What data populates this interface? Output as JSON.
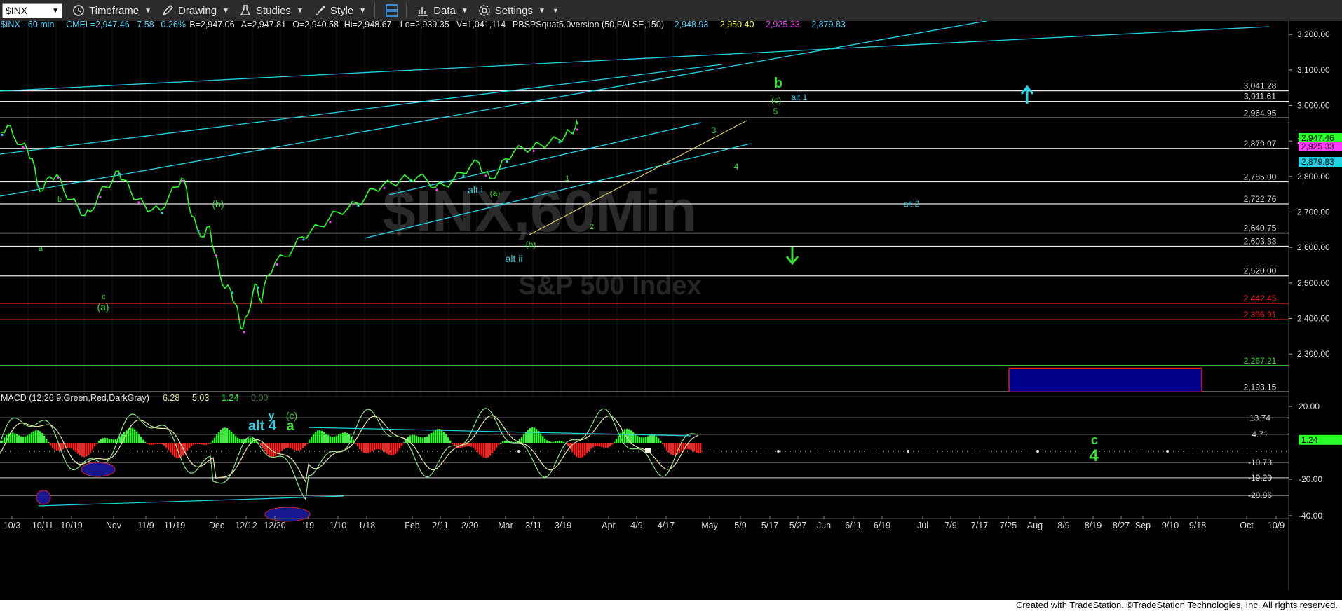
{
  "toolbar": {
    "symbol": "$INX",
    "timeframe_label": "Timeframe",
    "drawing_label": "Drawing",
    "studies_label": "Studies",
    "style_label": "Style",
    "data_label": "Data",
    "settings_label": "Settings"
  },
  "header": {
    "symbol_interval": "$INX - 60 min",
    "exchange": "CME",
    "last": "L=2,947.46",
    "change": "7.58",
    "change_pct": "0.26%",
    "bid": "B=2,947.06",
    "ask": "A=2,947.81",
    "open": "O=2,940.58",
    "high": "Hi=2,948.67",
    "low": "Lo=2,939.35",
    "volume": "V=1,041,114",
    "study": "PBSPSquat5.0version (50,FALSE,150)",
    "study_values": [
      "2,948.93",
      "2,950.40",
      "2,925.33",
      "2,879.83"
    ],
    "study_colors": [
      "#4fd8ff",
      "#ffff40",
      "#ff3cff",
      "#4fd8ff"
    ]
  },
  "watermark": {
    "line1": "$INX,60Min",
    "line2": "S&P 500 Index"
  },
  "colors": {
    "bg": "#000000",
    "price_up": "#29ff29",
    "cyan": "#22d3e6",
    "white": "#ffffff",
    "red": "#ff2020",
    "label_green": "#33e033",
    "label_cyan": "#33ccdd",
    "navy_box": "#00008b",
    "macd_line": "#8fe48f",
    "signal_line": "#e6e6a0"
  },
  "chart_data": {
    "type": "line",
    "title": "$INX - 60 min",
    "x_ticks": [
      "10/3",
      "10/11",
      "10/19",
      "Nov",
      "11/9",
      "11/19",
      "Dec",
      "12/12",
      "12/20",
      "'19",
      "1/10",
      "1/18",
      "Feb",
      "2/11",
      "2/20",
      "Mar",
      "3/11",
      "3/19",
      "Apr",
      "4/9",
      "4/17",
      "May",
      "5/9",
      "5/17",
      "5/27",
      "Jun",
      "6/11",
      "6/19",
      "Jul",
      "7/9",
      "7/17",
      "7/25",
      "Aug",
      "8/9",
      "8/19",
      "8/27",
      "Sep",
      "9/10",
      "9/18",
      "Oct",
      "10/9"
    ],
    "y_ticks": [
      "3,200.00",
      "3,100.00",
      "3,000.00",
      "2,900.00",
      "2,800.00",
      "2,700.00",
      "2,600.00",
      "2,500.00",
      "2,400.00",
      "2,300.00"
    ],
    "ylim": [
      2180,
      3230
    ],
    "price_path": [
      [
        0,
        2925
      ],
      [
        10,
        2945
      ],
      [
        18,
        2915
      ],
      [
        30,
        2890
      ],
      [
        38,
        2875
      ],
      [
        45,
        2850
      ],
      [
        52,
        2780
      ],
      [
        60,
        2760
      ],
      [
        70,
        2800
      ],
      [
        80,
        2805
      ],
      [
        90,
        2760
      ],
      [
        100,
        2735
      ],
      [
        110,
        2715
      ],
      [
        120,
        2690
      ],
      [
        128,
        2700
      ],
      [
        140,
        2750
      ],
      [
        150,
        2770
      ],
      [
        160,
        2790
      ],
      [
        168,
        2815
      ],
      [
        176,
        2790
      ],
      [
        185,
        2760
      ],
      [
        195,
        2735
      ],
      [
        205,
        2720
      ],
      [
        215,
        2705
      ],
      [
        228,
        2705
      ],
      [
        240,
        2745
      ],
      [
        250,
        2770
      ],
      [
        258,
        2795
      ],
      [
        265,
        2765
      ],
      [
        272,
        2690
      ],
      [
        280,
        2655
      ],
      [
        290,
        2630
      ],
      [
        298,
        2660
      ],
      [
        305,
        2585
      ],
      [
        312,
        2530
      ],
      [
        320,
        2485
      ],
      [
        328,
        2480
      ],
      [
        335,
        2440
      ],
      [
        340,
        2400
      ],
      [
        345,
        2370
      ],
      [
        352,
        2410
      ],
      [
        360,
        2475
      ],
      [
        365,
        2495
      ],
      [
        372,
        2445
      ],
      [
        380,
        2520
      ],
      [
        392,
        2560
      ],
      [
        405,
        2575
      ],
      [
        418,
        2600
      ],
      [
        430,
        2630
      ],
      [
        442,
        2645
      ],
      [
        455,
        2660
      ],
      [
        468,
        2680
      ],
      [
        480,
        2700
      ],
      [
        495,
        2710
      ],
      [
        508,
        2725
      ],
      [
        520,
        2740
      ],
      [
        532,
        2765
      ],
      [
        545,
        2775
      ],
      [
        558,
        2780
      ],
      [
        570,
        2790
      ],
      [
        582,
        2795
      ],
      [
        595,
        2800
      ],
      [
        608,
        2790
      ],
      [
        620,
        2770
      ],
      [
        632,
        2775
      ],
      [
        645,
        2790
      ],
      [
        658,
        2810
      ],
      [
        670,
        2830
      ],
      [
        682,
        2840
      ],
      [
        690,
        2810
      ],
      [
        698,
        2795
      ],
      [
        710,
        2815
      ],
      [
        720,
        2850
      ],
      [
        732,
        2870
      ],
      [
        745,
        2880
      ],
      [
        758,
        2880
      ],
      [
        770,
        2890
      ],
      [
        782,
        2895
      ],
      [
        795,
        2905
      ],
      [
        805,
        2915
      ],
      [
        812,
        2925
      ],
      [
        820,
        2940
      ],
      [
        823,
        2947
      ]
    ],
    "horizontal_levels": [
      {
        "value": "3,041.28",
        "color": "#e8e8e8"
      },
      {
        "value": "3,011.61",
        "color": "#e8e8e8"
      },
      {
        "value": "2,964.95",
        "color": "#e8e8e8"
      },
      {
        "value": "2,879.07",
        "color": "#e8e8e8"
      },
      {
        "value": "2,785.00",
        "color": "#e8e8e8"
      },
      {
        "value": "2,722.76",
        "color": "#e8e8e8"
      },
      {
        "value": "2,640.75",
        "color": "#e8e8e8"
      },
      {
        "value": "2,603.33",
        "color": "#e8e8e8"
      },
      {
        "value": "2,520.00",
        "color": "#e8e8e8"
      },
      {
        "value": "2,442.45",
        "color": "#ff2020"
      },
      {
        "value": "2,396.91",
        "color": "#ff2020"
      },
      {
        "value": "2,267.21",
        "color": "#3cdc3c"
      },
      {
        "value": "2,193.15",
        "color": "#e8e8e8"
      }
    ],
    "price_badges": [
      {
        "value": "2,947.46",
        "color": "#29ff29",
        "text_color": "#000000"
      },
      {
        "value": "2,925.33",
        "color": "#ff3cff",
        "text_color": "#000000"
      },
      {
        "value": "2,879.83",
        "color": "#22d3e6",
        "text_color": "#000000"
      }
    ],
    "wave_labels": [
      {
        "text": "b",
        "color": "#33e033"
      },
      {
        "text": "(c)",
        "color": "#33e033"
      },
      {
        "text": "5",
        "color": "#33e033"
      },
      {
        "text": "alt 1",
        "color": "#33ccdd"
      },
      {
        "text": "3",
        "color": "#33e033"
      },
      {
        "text": "4",
        "color": "#33e033"
      },
      {
        "text": "alt 2",
        "color": "#33ccdd"
      },
      {
        "text": "alt i",
        "color": "#33ccdd"
      },
      {
        "text": "(a)",
        "color": "#33e033"
      },
      {
        "text": "1",
        "color": "#33e033"
      },
      {
        "text": "2",
        "color": "#33e033"
      },
      {
        "text": "(b)",
        "color": "#33e033"
      },
      {
        "text": "alt ii",
        "color": "#33ccdd"
      },
      {
        "text": "b",
        "color": "#33e033"
      },
      {
        "text": "a",
        "color": "#33e033"
      },
      {
        "text": "c",
        "color": "#33e033"
      },
      {
        "text": "(a)",
        "color": "#33e033"
      },
      {
        "text": "(b)",
        "color": "#33e033"
      },
      {
        "text": "y",
        "color": "#33ccdd"
      },
      {
        "text": "alt 4",
        "color": "#33ccdd"
      },
      {
        "text": "(c)",
        "color": "#33e033"
      },
      {
        "text": "a",
        "color": "#33e033"
      },
      {
        "text": "c",
        "color": "#33e033"
      },
      {
        "text": "4",
        "color": "#33e033"
      }
    ],
    "target_box": {
      "low": 2193.15,
      "high": 2260
    },
    "macd": {
      "label": "MACD (12,26,9,Green,Red,DarkGray)",
      "values": [
        "6.28",
        "5.03",
        "1.24",
        "0.00"
      ],
      "value_colors": [
        "#e6e6a0",
        "#e6e6a0",
        "#29ff29",
        "#4a7a4a"
      ],
      "y_ticks": [
        "20.00",
        "-20.00",
        "-40.00"
      ],
      "levels": [
        "13.74",
        "4.71",
        "-10.73",
        "-19.20",
        "-28.86"
      ],
      "badge": "1.24"
    }
  },
  "footer": {
    "credit": "Created with TradeStation. ©TradeStation Technologies, Inc. All rights reserved."
  }
}
